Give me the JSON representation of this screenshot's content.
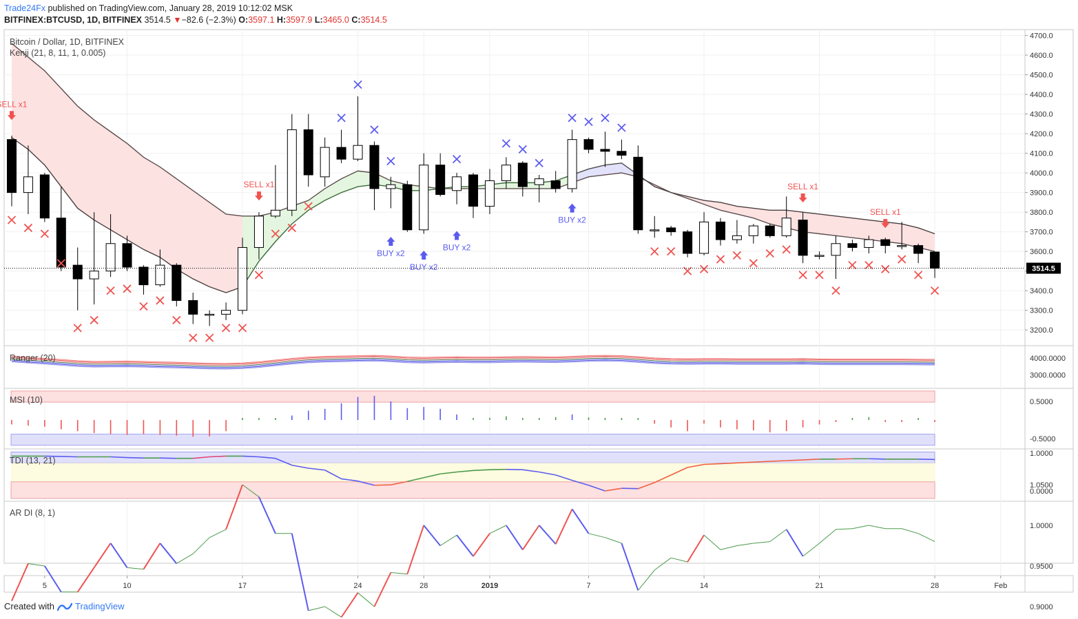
{
  "header": {
    "brand": "Trade24Fx",
    "published_text": "published on TradingView.com, January 28, 2019 10:12:02 MSK",
    "symbol": "BITFINEX:BTCUSD, 1D, BITFINEX",
    "last": "3514.5",
    "change_arrow": "▼",
    "change": "−82.6 (−2.3%)",
    "o_label": "O:",
    "o": "3597.1",
    "h_label": "H:",
    "h": "3597.9",
    "l_label": "L:",
    "l": "3465.0",
    "c_label": "C:",
    "c": "3514.5"
  },
  "footer": {
    "created_with": "Created with",
    "tv_name": "TradingView"
  },
  "colors": {
    "up_body": "#ffffff",
    "down_body": "#000000",
    "sell": "#ef5350",
    "buy": "#5b5bef",
    "cloud_bear": "#fde0e0",
    "cloud_bull": "#e3f5dd",
    "cloud_neutral": "#e0e0fb",
    "brand": "#3179f5"
  },
  "chart_data": {
    "type": "candlestick",
    "title": "Bitcoin / Dollar, 1D, BITFINEX",
    "indicator_label": "Kenji (21, 8, 11, 1, 0.005)",
    "y_ticks": [
      "3200.0",
      "3300.0",
      "3400.0",
      "3500.0",
      "3600.0",
      "3700.0",
      "3800.0",
      "3900.0",
      "4000.0",
      "4100.0",
      "4200.0",
      "4300.0",
      "4400.0",
      "4500.0",
      "4600.0",
      "4700.0"
    ],
    "ylim": [
      3120,
      4730
    ],
    "last_price_label": "3514.5",
    "x_ticks": [
      {
        "i": 2,
        "label": "5"
      },
      {
        "i": 7,
        "label": "10"
      },
      {
        "i": 14,
        "label": "17"
      },
      {
        "i": 21,
        "label": "24"
      },
      {
        "i": 25,
        "label": "28"
      },
      {
        "i": 29,
        "label": "2019"
      },
      {
        "i": 35,
        "label": "7"
      },
      {
        "i": 42,
        "label": "14"
      },
      {
        "i": 49,
        "label": "21"
      },
      {
        "i": 56,
        "label": "28"
      },
      {
        "i": 60,
        "label": "Feb"
      }
    ],
    "candles": [
      {
        "o": 4170,
        "h": 4190,
        "l": 3830,
        "c": 3900
      },
      {
        "o": 3900,
        "h": 4140,
        "l": 3790,
        "c": 3980
      },
      {
        "o": 3990,
        "h": 4000,
        "l": 3750,
        "c": 3770
      },
      {
        "o": 3770,
        "h": 3930,
        "l": 3500,
        "c": 3520
      },
      {
        "o": 3530,
        "h": 3620,
        "l": 3300,
        "c": 3460
      },
      {
        "o": 3460,
        "h": 3800,
        "l": 3330,
        "c": 3500
      },
      {
        "o": 3500,
        "h": 3790,
        "l": 3470,
        "c": 3640
      },
      {
        "o": 3640,
        "h": 3680,
        "l": 3500,
        "c": 3520
      },
      {
        "o": 3520,
        "h": 3530,
        "l": 3380,
        "c": 3430
      },
      {
        "o": 3430,
        "h": 3610,
        "l": 3420,
        "c": 3530
      },
      {
        "o": 3530,
        "h": 3540,
        "l": 3320,
        "c": 3350
      },
      {
        "o": 3350,
        "h": 3390,
        "l": 3230,
        "c": 3280
      },
      {
        "o": 3280,
        "h": 3300,
        "l": 3220,
        "c": 3280
      },
      {
        "o": 3280,
        "h": 3340,
        "l": 3250,
        "c": 3300
      },
      {
        "o": 3300,
        "h": 3670,
        "l": 3280,
        "c": 3620
      },
      {
        "o": 3620,
        "h": 3800,
        "l": 3560,
        "c": 3780
      },
      {
        "o": 3780,
        "h": 4040,
        "l": 3770,
        "c": 3810
      },
      {
        "o": 3810,
        "h": 4300,
        "l": 3780,
        "c": 4220
      },
      {
        "o": 4220,
        "h": 4300,
        "l": 3930,
        "c": 3990
      },
      {
        "o": 3980,
        "h": 4180,
        "l": 3930,
        "c": 4130
      },
      {
        "o": 4130,
        "h": 4220,
        "l": 4050,
        "c": 4070
      },
      {
        "o": 4070,
        "h": 4390,
        "l": 4060,
        "c": 4140
      },
      {
        "o": 4140,
        "h": 4160,
        "l": 3810,
        "c": 3920
      },
      {
        "o": 3920,
        "h": 3980,
        "l": 3820,
        "c": 3940
      },
      {
        "o": 3940,
        "h": 3960,
        "l": 3700,
        "c": 3710
      },
      {
        "o": 3710,
        "h": 4100,
        "l": 3690,
        "c": 4040
      },
      {
        "o": 4040,
        "h": 4100,
        "l": 3880,
        "c": 3890
      },
      {
        "o": 3910,
        "h": 4000,
        "l": 3840,
        "c": 3980
      },
      {
        "o": 3990,
        "h": 4000,
        "l": 3770,
        "c": 3830
      },
      {
        "o": 3830,
        "h": 4020,
        "l": 3790,
        "c": 3960
      },
      {
        "o": 3960,
        "h": 4080,
        "l": 3920,
        "c": 4040
      },
      {
        "o": 4050,
        "h": 4060,
        "l": 3880,
        "c": 3930
      },
      {
        "o": 3940,
        "h": 3990,
        "l": 3850,
        "c": 3970
      },
      {
        "o": 3960,
        "h": 4010,
        "l": 3900,
        "c": 3920
      },
      {
        "o": 3920,
        "h": 4220,
        "l": 3900,
        "c": 4170
      },
      {
        "o": 4170,
        "h": 4180,
        "l": 4100,
        "c": 4120
      },
      {
        "o": 4120,
        "h": 4210,
        "l": 4030,
        "c": 4110
      },
      {
        "o": 4110,
        "h": 4170,
        "l": 4070,
        "c": 4090
      },
      {
        "o": 4080,
        "h": 4140,
        "l": 3690,
        "c": 3710
      },
      {
        "o": 3710,
        "h": 3780,
        "l": 3670,
        "c": 3710
      },
      {
        "o": 3720,
        "h": 3730,
        "l": 3680,
        "c": 3700
      },
      {
        "o": 3700,
        "h": 3710,
        "l": 3570,
        "c": 3590
      },
      {
        "o": 3590,
        "h": 3800,
        "l": 3580,
        "c": 3750
      },
      {
        "o": 3750,
        "h": 3770,
        "l": 3630,
        "c": 3660
      },
      {
        "o": 3660,
        "h": 3760,
        "l": 3640,
        "c": 3680
      },
      {
        "o": 3680,
        "h": 3740,
        "l": 3640,
        "c": 3730
      },
      {
        "o": 3730,
        "h": 3740,
        "l": 3670,
        "c": 3680
      },
      {
        "o": 3680,
        "h": 3880,
        "l": 3670,
        "c": 3770
      },
      {
        "o": 3760,
        "h": 3800,
        "l": 3540,
        "c": 3580
      },
      {
        "o": 3580,
        "h": 3600,
        "l": 3560,
        "c": 3580
      },
      {
        "o": 3580,
        "h": 3680,
        "l": 3460,
        "c": 3640
      },
      {
        "o": 3640,
        "h": 3660,
        "l": 3600,
        "c": 3620
      },
      {
        "o": 3620,
        "h": 3680,
        "l": 3590,
        "c": 3660
      },
      {
        "o": 3660,
        "h": 3670,
        "l": 3590,
        "c": 3630
      },
      {
        "o": 3630,
        "h": 3750,
        "l": 3610,
        "c": 3630
      },
      {
        "o": 3630,
        "h": 3640,
        "l": 3540,
        "c": 3590
      },
      {
        "o": 3597.1,
        "h": 3597.9,
        "l": 3465,
        "c": 3514.5
      }
    ],
    "upper_band": [
      4180,
      4120,
      4040,
      3930,
      3820,
      3760,
      3710,
      3660,
      3610,
      3570,
      3510,
      3460,
      3420,
      3390,
      3420,
      3550,
      3650,
      3740,
      3810,
      3860,
      3900,
      3930,
      3940,
      3930,
      3910,
      3910,
      3920,
      3930,
      3930,
      3940,
      3950,
      3950,
      3950,
      3960,
      3990,
      4020,
      4040,
      4050,
      3990,
      3930,
      3900,
      3880,
      3860,
      3850,
      3830,
      3820,
      3810,
      3810,
      3800,
      3790,
      3780,
      3770,
      3760,
      3750,
      3740,
      3720,
      3690
    ],
    "lower_band": [
      4660,
      4590,
      4520,
      4430,
      4340,
      4270,
      4210,
      4150,
      4080,
      4030,
      3970,
      3910,
      3850,
      3790,
      3780,
      3780,
      3800,
      3830,
      3860,
      3920,
      3970,
      4010,
      4000,
      3960,
      3940,
      3930,
      3920,
      3920,
      3920,
      3920,
      3920,
      3920,
      3920,
      3920,
      3950,
      3980,
      3990,
      4000,
      3980,
      3940,
      3900,
      3870,
      3840,
      3810,
      3790,
      3770,
      3740,
      3720,
      3700,
      3690,
      3680,
      3670,
      3660,
      3650,
      3640,
      3620,
      3600
    ],
    "cloud_segments": [
      {
        "from": 0,
        "to": 14,
        "state": "bear"
      },
      {
        "from": 14,
        "to": 22,
        "state": "bull"
      },
      {
        "from": 22,
        "to": 34,
        "state": "bull"
      },
      {
        "from": 34,
        "to": 38,
        "state": "neutral"
      },
      {
        "from": 38,
        "to": 56,
        "state": "bear"
      }
    ],
    "sell_markers": [
      {
        "i": 0,
        "price": 4280,
        "label": "SELL x1"
      },
      {
        "i": 15,
        "price": 3870,
        "label": "SELL x1"
      },
      {
        "i": 48,
        "price": 3860,
        "label": "SELL x1"
      },
      {
        "i": 53,
        "price": 3730,
        "label": "SELL x1"
      }
    ],
    "buy_markers": [
      {
        "i": 23,
        "price": 3660,
        "label": "BUY x2"
      },
      {
        "i": 25,
        "price": 3590,
        "label": "BUY x2"
      },
      {
        "i": 27,
        "price": 3690,
        "label": "BUY x2"
      },
      {
        "i": 34,
        "price": 3830,
        "label": "BUY x2"
      }
    ],
    "red_x": [
      {
        "i": 0,
        "p": 3760
      },
      {
        "i": 1,
        "p": 3720
      },
      {
        "i": 2,
        "p": 3690
      },
      {
        "i": 3,
        "p": 3540
      },
      {
        "i": 4,
        "p": 3210
      },
      {
        "i": 5,
        "p": 3250
      },
      {
        "i": 6,
        "p": 3400
      },
      {
        "i": 7,
        "p": 3410
      },
      {
        "i": 8,
        "p": 3320
      },
      {
        "i": 9,
        "p": 3350
      },
      {
        "i": 10,
        "p": 3250
      },
      {
        "i": 11,
        "p": 3160
      },
      {
        "i": 12,
        "p": 3160
      },
      {
        "i": 13,
        "p": 3210
      },
      {
        "i": 14,
        "p": 3210
      },
      {
        "i": 15,
        "p": 3480
      },
      {
        "i": 16,
        "p": 3690
      },
      {
        "i": 17,
        "p": 3720
      },
      {
        "i": 18,
        "p": 3830
      },
      {
        "i": 39,
        "p": 3600
      },
      {
        "i": 40,
        "p": 3600
      },
      {
        "i": 41,
        "p": 3500
      },
      {
        "i": 42,
        "p": 3510
      },
      {
        "i": 43,
        "p": 3560
      },
      {
        "i": 44,
        "p": 3580
      },
      {
        "i": 45,
        "p": 3540
      },
      {
        "i": 46,
        "p": 3590
      },
      {
        "i": 47,
        "p": 3610
      },
      {
        "i": 48,
        "p": 3480
      },
      {
        "i": 49,
        "p": 3480
      },
      {
        "i": 50,
        "p": 3400
      },
      {
        "i": 51,
        "p": 3530
      },
      {
        "i": 52,
        "p": 3530
      },
      {
        "i": 53,
        "p": 3510
      },
      {
        "i": 54,
        "p": 3560
      },
      {
        "i": 55,
        "p": 3480
      },
      {
        "i": 56,
        "p": 3400
      }
    ],
    "blue_x": [
      {
        "i": 20,
        "p": 4280
      },
      {
        "i": 21,
        "p": 4450
      },
      {
        "i": 22,
        "p": 4220
      },
      {
        "i": 23,
        "p": 4060
      },
      {
        "i": 27,
        "p": 4070
      },
      {
        "i": 30,
        "p": 4150
      },
      {
        "i": 31,
        "p": 4120
      },
      {
        "i": 32,
        "p": 4050
      },
      {
        "i": 34,
        "p": 4280
      },
      {
        "i": 35,
        "p": 4260
      },
      {
        "i": 36,
        "p": 4280
      },
      {
        "i": 37,
        "p": 4230
      }
    ],
    "ranger": {
      "label": "Ranger (20)",
      "y_ticks": [
        "4000.0000",
        "3000.0000"
      ],
      "base": [
        3950,
        3880,
        3820,
        3750,
        3680,
        3640,
        3650,
        3660,
        3640,
        3610,
        3590,
        3560,
        3530,
        3520,
        3550,
        3620,
        3720,
        3820,
        3900,
        3940,
        3960,
        3980,
        4000,
        3960,
        3900,
        3880,
        3900,
        3920,
        3900,
        3900,
        3920,
        3930,
        3920,
        3910,
        3940,
        3980,
        4000,
        3980,
        3920,
        3850,
        3810,
        3800,
        3810,
        3810,
        3800,
        3800,
        3800,
        3800,
        3810,
        3790,
        3780,
        3780,
        3780,
        3780,
        3780,
        3770,
        3760
      ]
    },
    "msi": {
      "label": "MSI (10)",
      "y_ticks": [
        "0.5000",
        "-0.5000"
      ],
      "values": [
        -0.12,
        -0.15,
        -0.18,
        -0.25,
        -0.3,
        -0.35,
        -0.38,
        -0.4,
        -0.38,
        -0.4,
        -0.42,
        -0.45,
        -0.44,
        -0.3,
        0.02,
        0.03,
        0.05,
        0.12,
        0.25,
        0.3,
        0.45,
        0.62,
        0.65,
        0.5,
        0.32,
        0.35,
        0.3,
        0.15,
        0.05,
        0.06,
        0.1,
        0.05,
        0.03,
        0.08,
        0.15,
        0.07,
        0.05,
        0.02,
        0,
        -0.1,
        -0.2,
        -0.3,
        -0.1,
        -0.2,
        -0.25,
        -0.28,
        -0.33,
        -0.3,
        -0.2,
        -0.12,
        -0.05,
        0.05,
        0.08,
        -0.05,
        -0.03,
        0.04,
        -0.05
      ]
    },
    "tdi": {
      "label": "TDI (13, 21)",
      "y_ticks": [
        "1.0000",
        "0.0000"
      ],
      "values": [
        0.92,
        0.92,
        0.92,
        0.91,
        0.9,
        0.9,
        0.9,
        0.88,
        0.87,
        0.87,
        0.86,
        0.86,
        0.9,
        0.92,
        0.92,
        0.9,
        0.86,
        0.68,
        0.6,
        0.55,
        0.32,
        0.26,
        0.15,
        0.16,
        0.25,
        0.35,
        0.45,
        0.5,
        0.54,
        0.56,
        0.57,
        0.56,
        0.5,
        0.42,
        0.28,
        0.15,
        0.0,
        0.07,
        0.06,
        0.22,
        0.42,
        0.62,
        0.7,
        0.72,
        0.74,
        0.76,
        0.78,
        0.8,
        0.82,
        0.84,
        0.84,
        0.85,
        0.85,
        0.84,
        0.84,
        0.84,
        0.83
      ]
    },
    "ardi": {
      "label": "AR DI (8, 1)",
      "y_ticks": [
        "1.0500",
        "1.0000",
        "0.9500",
        "0.9000"
      ],
      "values": [
        0.907,
        0.953,
        0.95,
        0.918,
        0.918,
        0.948,
        0.978,
        0.948,
        0.946,
        0.978,
        0.953,
        0.965,
        0.985,
        0.995,
        1.05,
        1.035,
        0.99,
        0.99,
        0.895,
        0.9,
        0.887,
        0.917,
        0.9,
        0.942,
        0.94,
        1.0,
        0.975,
        0.988,
        0.962,
        0.99,
        1.0,
        0.97,
        1.0,
        0.977,
        1.02,
        0.99,
        0.985,
        0.978,
        0.92,
        0.945,
        0.96,
        0.955,
        0.988,
        0.97,
        0.975,
        0.978,
        0.98,
        0.995,
        0.962,
        0.978,
        0.995,
        0.996,
        1.0,
        0.996,
        0.996,
        0.99,
        0.98
      ]
    }
  }
}
